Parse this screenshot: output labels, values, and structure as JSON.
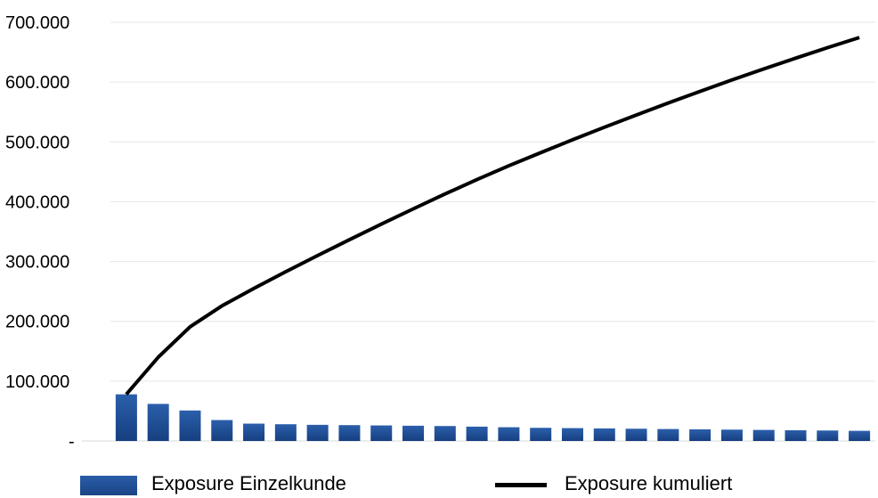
{
  "chart_data": {
    "type": "bar+line",
    "title": "",
    "xlabel": "",
    "ylabel": "",
    "ylim": [
      0,
      700000
    ],
    "y_ticks": [
      {
        "value": 0,
        "label": "-"
      },
      {
        "value": 100000,
        "label": "100.000"
      },
      {
        "value": 200000,
        "label": "200.000"
      },
      {
        "value": 300000,
        "label": "300.000"
      },
      {
        "value": 400000,
        "label": "400.000"
      },
      {
        "value": 500000,
        "label": "500.000"
      },
      {
        "value": 600000,
        "label": "600.000"
      },
      {
        "value": 700000,
        "label": "700.000"
      }
    ],
    "grid": true,
    "legend_position": "bottom",
    "series": [
      {
        "name": "Exposure Einzelkunde",
        "type": "bar",
        "color": "#1f4e96",
        "values": [
          78000,
          62000,
          51000,
          35000,
          29000,
          28000,
          27000,
          26500,
          26000,
          25500,
          25000,
          24000,
          23000,
          22000,
          21500,
          21000,
          20500,
          20000,
          19500,
          19000,
          18500,
          18000,
          17500,
          17000
        ]
      },
      {
        "name": "Exposure kumuliert",
        "type": "line",
        "color": "#000000",
        "values": [
          78000,
          140000,
          191000,
          226000,
          255000,
          283000,
          310000,
          336500,
          362500,
          388000,
          413000,
          437000,
          460000,
          482000,
          503500,
          524500,
          545000,
          565000,
          584500,
          603500,
          622000,
          640000,
          657500,
          674500
        ]
      }
    ]
  }
}
